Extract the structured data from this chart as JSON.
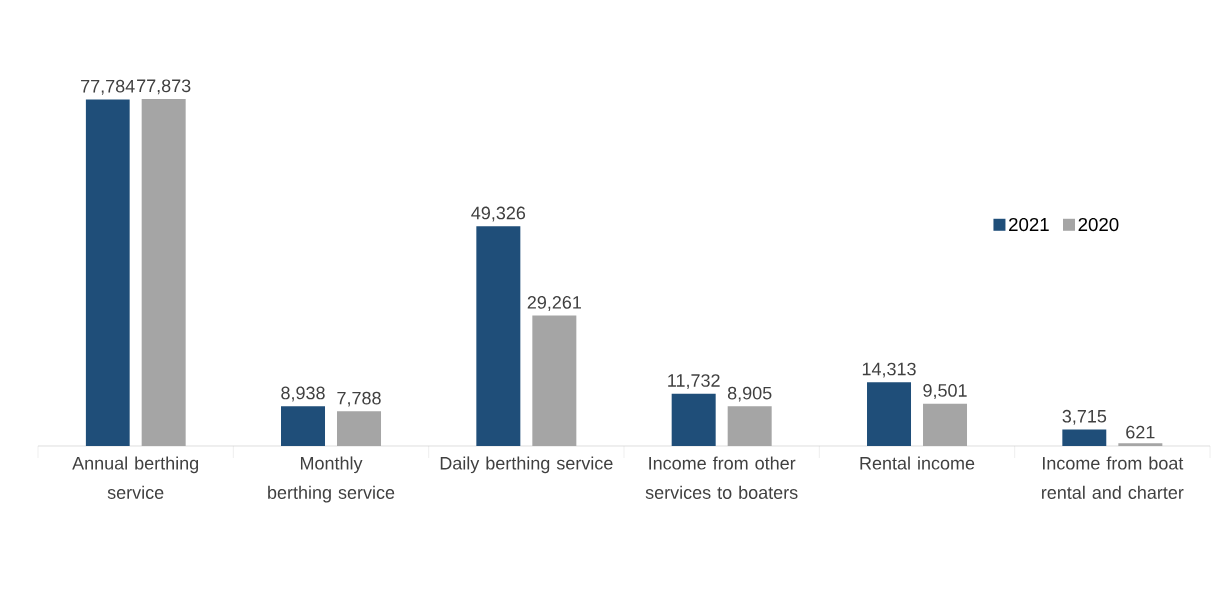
{
  "chart_data": {
    "type": "bar",
    "categories": [
      "Annual berthing service",
      "Monthly berthing service",
      "Daily berthing service",
      "Income from other services to boaters",
      "Rental income",
      "Income from boat rental and charter"
    ],
    "series": [
      {
        "name": "2021",
        "color": "#1f4e79",
        "values": [
          77784,
          8938,
          49326,
          11732,
          14313,
          3715
        ],
        "value_labels": [
          "77,784",
          "8,938",
          "49,326",
          "11,732",
          "14,313",
          "3,715"
        ]
      },
      {
        "name": "2020",
        "color": "#a5a5a5",
        "values": [
          77873,
          7788,
          29261,
          8905,
          9501,
          621
        ],
        "value_labels": [
          "77,873",
          "7,788",
          "29,261",
          "8,905",
          "9,501",
          "621"
        ]
      }
    ],
    "legend": "right"
  }
}
